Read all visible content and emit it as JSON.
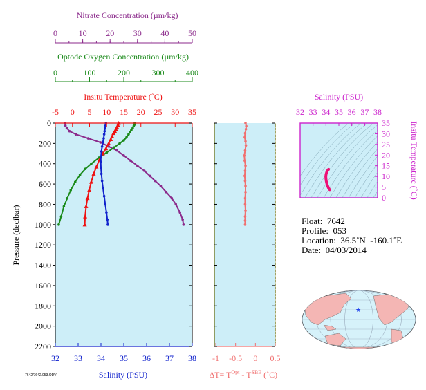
{
  "colors": {
    "panel_bg": "#cdeef8",
    "nitrate": "#8b2a8b",
    "oxygen": "#1a8a1a",
    "temperature": "#ee1111",
    "salinity": "#1122cc",
    "delta_t": "#f07070",
    "ts_axis": "#cc22cc",
    "ts_curve": "#ee1177",
    "map_land": "#f4b6b4",
    "map_ocean": "#d6f2fa"
  },
  "chart_data": [
    {
      "type": "line",
      "name_key": "profiles",
      "ylabel": "Pressure (decibar)",
      "ylim": [
        0,
        2200
      ],
      "yticks": [
        0,
        200,
        400,
        600,
        800,
        1000,
        1200,
        1400,
        1600,
        1800,
        2000,
        2200
      ],
      "axes": {
        "nitrate": {
          "label": "Nitrate Concentration (µm/kg)",
          "range": [
            0,
            50
          ],
          "ticks": [
            "0",
            "10",
            "20",
            "30",
            "40",
            "50"
          ]
        },
        "oxygen": {
          "label": "Optode Oxygen Concentration (µm/kg)",
          "range": [
            0,
            400
          ],
          "ticks": [
            "0",
            "100",
            "200",
            "300",
            "400"
          ]
        },
        "temperature": {
          "label": "Insitu Temperature (˚C)",
          "range": [
            -5,
            35
          ],
          "ticks": [
            "-5",
            "0",
            "5",
            "10",
            "15",
            "20",
            "25",
            "30",
            "35"
          ]
        },
        "salinity": {
          "label": "Salinity (PSU)",
          "range": [
            32,
            38
          ],
          "ticks": [
            "32",
            "33",
            "34",
            "35",
            "36",
            "37",
            "38"
          ]
        }
      },
      "series": [
        {
          "key": "nitrate",
          "marker": "dot",
          "x": [
            3.5,
            3.7,
            4.2,
            5.2,
            7.5,
            12,
            16.5,
            19.5,
            22.5,
            25,
            27.5,
            30,
            32.5,
            34.5,
            36.5,
            38.5,
            40.5,
            42.5,
            44,
            45.5,
            46.5,
            46.8
          ],
          "y": [
            0,
            25,
            50,
            80,
            110,
            150,
            190,
            230,
            270,
            320,
            370,
            420,
            470,
            520,
            570,
            620,
            680,
            740,
            800,
            880,
            950,
            1000
          ]
        },
        {
          "key": "oxygen",
          "marker": "dot",
          "x": [
            232,
            231,
            229,
            226,
            222,
            218,
            214,
            208,
            200,
            188,
            172,
            150,
            128,
            105,
            88,
            72,
            58,
            45,
            35,
            25,
            17,
            10
          ],
          "y": [
            0,
            15,
            30,
            50,
            70,
            90,
            110,
            140,
            170,
            200,
            240,
            290,
            340,
            400,
            450,
            510,
            580,
            660,
            740,
            820,
            920,
            1000
          ]
        },
        {
          "key": "temperature",
          "marker": "triangle",
          "x": [
            13.5,
            13.3,
            13.0,
            12.7,
            12.4,
            12.0,
            11.6,
            11.2,
            10.6,
            9.8,
            8.9,
            7.9,
            7.0,
            6.2,
            5.5,
            4.9,
            4.4,
            4.0,
            3.7,
            3.6
          ],
          "y": [
            0,
            20,
            40,
            60,
            80,
            100,
            130,
            160,
            200,
            250,
            300,
            360,
            430,
            500,
            580,
            660,
            740,
            820,
            920,
            1000
          ]
        },
        {
          "key": "salinity",
          "marker": "dot",
          "x": [
            34.22,
            34.2,
            34.18,
            34.16,
            34.14,
            34.12,
            34.08,
            34.05,
            34.02,
            34.0,
            33.99,
            34.0,
            34.02,
            34.05,
            34.09,
            34.14,
            34.19,
            34.24,
            34.28,
            34.3
          ],
          "y": [
            0,
            25,
            50,
            80,
            110,
            150,
            190,
            230,
            280,
            330,
            380,
            440,
            500,
            570,
            640,
            720,
            800,
            880,
            950,
            1000
          ]
        }
      ]
    },
    {
      "type": "line",
      "name_key": "delta_t",
      "xlabel_main": "∆T= T",
      "xlabel_sup1": "Opt",
      "xlabel_mid": " - T",
      "xlabel_sup2": "SBE",
      "xlabel_end": " (˚C)",
      "xlim": [
        -1,
        0
      ],
      "xticks": [
        "-1",
        "-0.5",
        "0",
        "0.5"
      ],
      "ylim": [
        0,
        2200
      ],
      "series": [
        {
          "key": "delta_t",
          "x": [
            -0.25,
            -0.23,
            -0.24,
            -0.26,
            -0.27,
            -0.25,
            -0.24,
            -0.26,
            -0.28,
            -0.27,
            -0.25,
            -0.26,
            -0.27,
            -0.26,
            -0.25,
            -0.25,
            -0.26,
            -0.26,
            -0.25,
            -0.26,
            -0.26,
            -0.26
          ],
          "y": [
            0,
            30,
            60,
            100,
            140,
            180,
            220,
            270,
            320,
            370,
            420,
            470,
            520,
            570,
            620,
            680,
            740,
            800,
            860,
            920,
            960,
            1000
          ]
        }
      ]
    },
    {
      "type": "scatter",
      "name_key": "ts",
      "title": "Salinity (PSU)",
      "ylabel": "Insitu Temperature (˚C)",
      "xlim": [
        32,
        38
      ],
      "ylim": [
        0,
        35
      ],
      "xticks": [
        "32",
        "33",
        "34",
        "35",
        "36",
        "37",
        "38"
      ],
      "yticks": [
        "0",
        "5",
        "10",
        "15",
        "20",
        "25",
        "30",
        "35"
      ],
      "series": [
        {
          "key": "ts",
          "x": [
            34.3,
            34.28,
            34.24,
            34.19,
            34.14,
            34.09,
            34.05,
            34.02,
            34.0,
            33.99,
            34.0,
            34.02,
            34.05,
            34.08,
            34.12,
            34.16,
            34.2,
            34.22
          ],
          "y": [
            3.6,
            3.8,
            4.2,
            4.7,
            5.4,
            6.2,
            7.1,
            8.0,
            8.9,
            9.8,
            10.6,
            11.2,
            11.8,
            12.3,
            12.7,
            13.0,
            13.3,
            13.5
          ]
        }
      ]
    }
  ],
  "float_info": {
    "float": "Float:  7642",
    "profile": "Profile:  053",
    "location": "Location:  36.5˚N  -160.1˚E",
    "date": "Date:  04/03/2014"
  },
  "map": {
    "marker": "★",
    "marker_name": "float-location-star"
  },
  "footer_tiny": "7642/7642.053.ODV"
}
